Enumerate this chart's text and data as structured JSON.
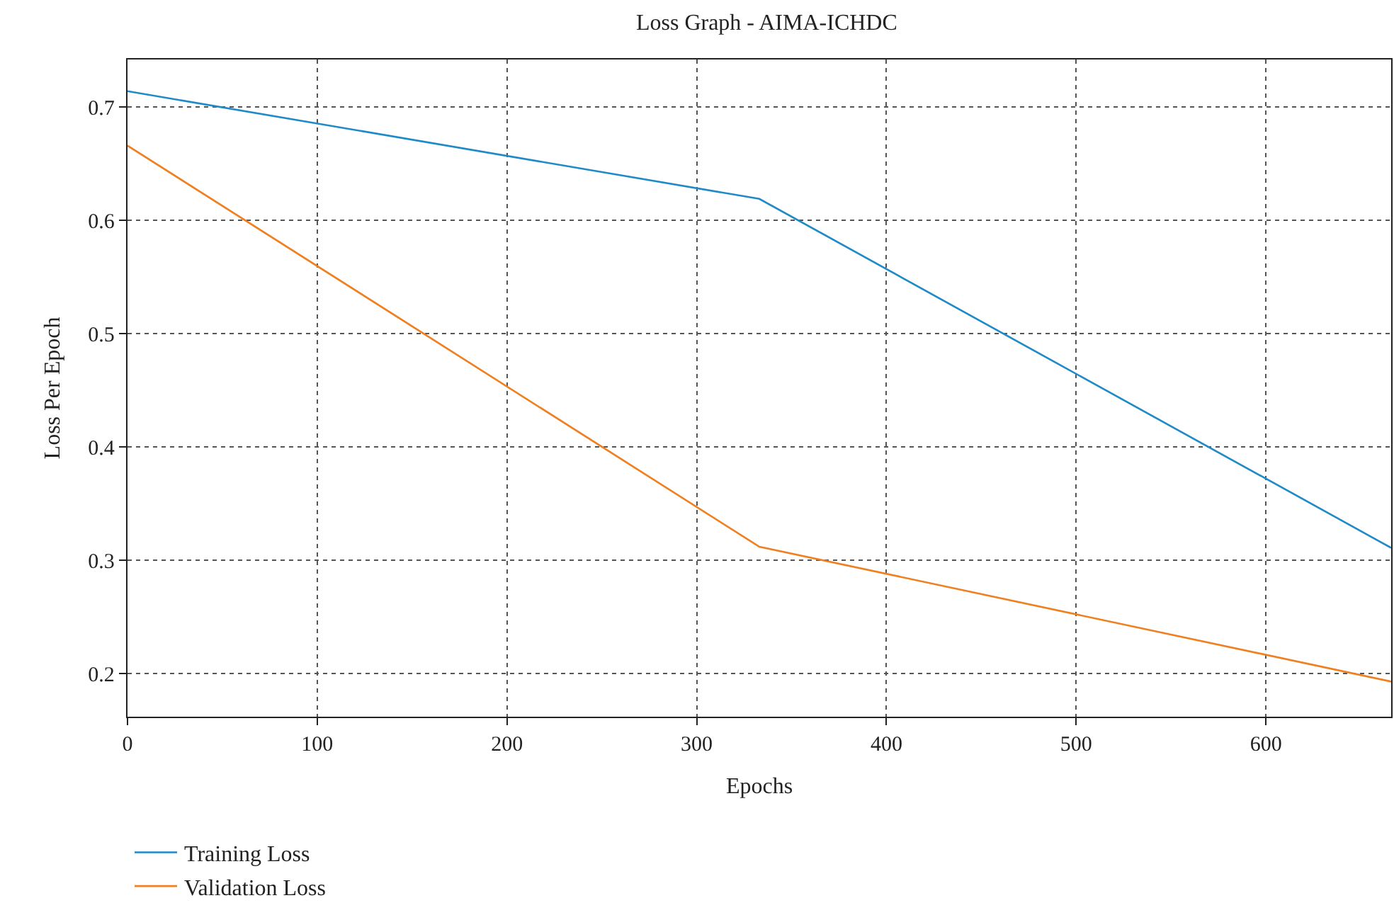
{
  "chart_data": {
    "type": "line",
    "title": "Loss Graph - AIMA-ICHDC",
    "xlabel": "Epochs",
    "ylabel": "Loss Per Epoch",
    "x": [
      0,
      333,
      666
    ],
    "series": [
      {
        "name": "Training Loss",
        "color": "#1f8ac8",
        "values": [
          0.714,
          0.619,
          0.311
        ]
      },
      {
        "name": "Validation Loss",
        "color": "#f07f1f",
        "values": [
          0.666,
          0.312,
          0.193
        ]
      }
    ],
    "xlim": [
      0,
      666
    ],
    "xticks": [
      0,
      100,
      200,
      300,
      400,
      500,
      600
    ],
    "ylim": [
      0.162,
      0.742
    ],
    "yticks": [
      0.2,
      0.3,
      0.4,
      0.5,
      0.6,
      0.7
    ],
    "grid": true,
    "legend": "bottom left",
    "marker": "none",
    "line_style": "solid"
  }
}
